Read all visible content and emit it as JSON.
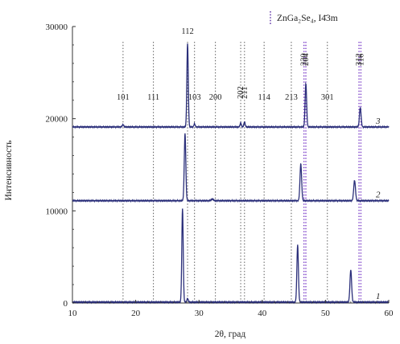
{
  "chart_data": {
    "type": "line",
    "xlabel": "2θ, град",
    "ylabel": "Интенсивность",
    "xlim": [
      10,
      60
    ],
    "ylim": [
      0,
      30000
    ],
    "x_ticks": [
      10,
      20,
      30,
      40,
      50,
      60
    ],
    "y_ticks": [
      0,
      10000,
      20000,
      30000
    ],
    "legend": {
      "text": "ZnGa₂Se₄, I4̄3m",
      "marker": "dotted line",
      "position": "top-right"
    },
    "reference_peaks": [
      {
        "hkl": "101",
        "two_theta": 18.0
      },
      {
        "hkl": "111",
        "two_theta": 22.8
      },
      {
        "hkl": "112",
        "two_theta": 28.2
      },
      {
        "hkl": "103",
        "two_theta": 29.3
      },
      {
        "hkl": "200",
        "two_theta": 32.6
      },
      {
        "hkl": "202",
        "two_theta": 36.6
      },
      {
        "hkl": "211",
        "two_theta": 37.2
      },
      {
        "hkl": "114",
        "two_theta": 40.3
      },
      {
        "hkl": "213",
        "two_theta": 44.6
      },
      {
        "hkl": "220",
        "two_theta": 46.6
      },
      {
        "hkl": "204",
        "two_theta": 46.9
      },
      {
        "hkl": "301",
        "two_theta": 50.3
      },
      {
        "hkl": "312",
        "two_theta": 55.3
      },
      {
        "hkl": "116",
        "two_theta": 55.6
      }
    ],
    "series": [
      {
        "name": "1",
        "baseline": 100,
        "peaks": [
          {
            "x": 27.4,
            "height": 10200,
            "width": 0.11
          },
          {
            "x": 28.2,
            "height": 400,
            "width": 0.1
          },
          {
            "x": 45.6,
            "height": 6200,
            "width": 0.12
          },
          {
            "x": 54.0,
            "height": 3500,
            "width": 0.13
          }
        ]
      },
      {
        "name": "2",
        "baseline": 11100,
        "peaks": [
          {
            "x": 27.8,
            "height": 7300,
            "width": 0.12
          },
          {
            "x": 32.1,
            "height": 200,
            "width": 0.15
          },
          {
            "x": 46.1,
            "height": 4000,
            "width": 0.13
          },
          {
            "x": 54.6,
            "height": 2200,
            "width": 0.14
          }
        ]
      },
      {
        "name": "3",
        "baseline": 19100,
        "peaks": [
          {
            "x": 18.0,
            "height": 250,
            "width": 0.12
          },
          {
            "x": 28.2,
            "height": 9100,
            "width": 0.11
          },
          {
            "x": 29.3,
            "height": 350,
            "width": 0.1
          },
          {
            "x": 36.6,
            "height": 450,
            "width": 0.1
          },
          {
            "x": 37.2,
            "height": 550,
            "width": 0.1
          },
          {
            "x": 46.9,
            "height": 4700,
            "width": 0.12
          },
          {
            "x": 55.5,
            "height": 2100,
            "width": 0.13
          }
        ]
      }
    ]
  }
}
